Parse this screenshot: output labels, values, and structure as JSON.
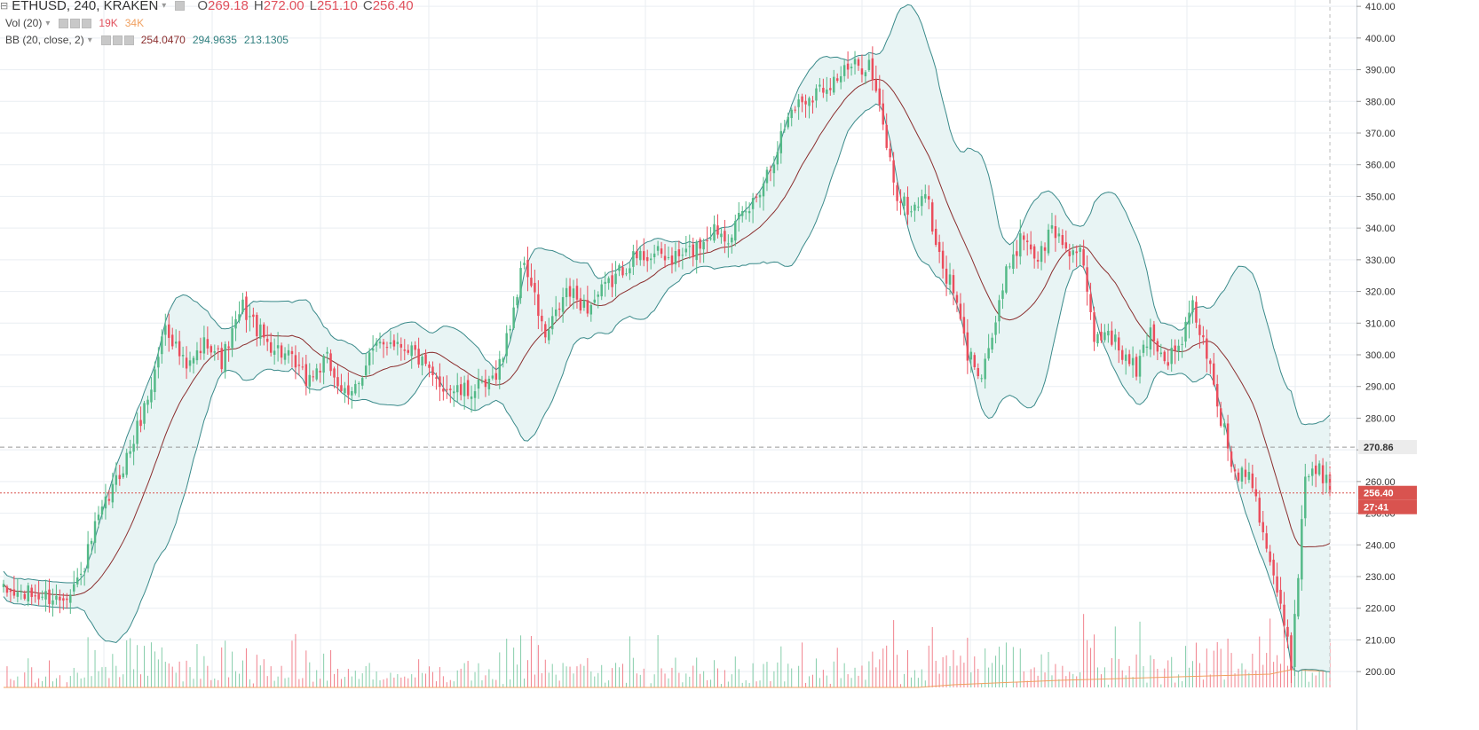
{
  "legend": {
    "symbol": "ETHUSD, 240, KRAKEN",
    "ohlc": [
      {
        "k": "O",
        "v": "269.18"
      },
      {
        "k": "H",
        "v": "272.00"
      },
      {
        "k": "L",
        "v": "251.10"
      },
      {
        "k": "C",
        "v": "256.40"
      }
    ],
    "vol_name": "Vol (20)",
    "vol_values": [
      "19K",
      "34K"
    ],
    "bb_name": "BB (20, close, 2)",
    "bb_values": [
      "254.0470",
      "294.9635",
      "213.1305"
    ]
  },
  "colors": {
    "up": "#53b987",
    "down": "#eb4d5c",
    "basis": "#8b2e2e",
    "band": "#3a8a8a",
    "band_fill": "#e8f4f4",
    "grid": "#e9eef2",
    "vol_ma": "#f0a060",
    "ref_line": "#999999",
    "price_line": "#d9534f",
    "axis_text": "#333333"
  },
  "chart_data": {
    "type": "candlestick",
    "symbol": "ETHUSD",
    "interval": "240",
    "exchange": "KRAKEN",
    "ylim": [
      195,
      412
    ],
    "yticks": [
      200,
      210,
      220,
      230,
      240,
      250,
      260,
      270,
      280,
      290,
      300,
      310,
      320,
      330,
      340,
      350,
      360,
      370,
      380,
      390,
      400,
      410
    ],
    "ytick_labels": [
      "200.00",
      "210.00",
      "220.00",
      "230.00",
      "240.00",
      "250.00",
      "260.00",
      "270.00",
      "280.00",
      "290.00",
      "300.00",
      "310.00",
      "320.00",
      "330.00",
      "340.00",
      "350.00",
      "360.00",
      "370.00",
      "380.00",
      "390.00",
      "400.00",
      "410.00"
    ],
    "hline_ref": {
      "value": 270.86,
      "label": "270.86"
    },
    "hline_last": {
      "value": 256.4,
      "label": "256.40"
    },
    "countdown_label": "27:41",
    "close_anchors": [
      [
        0,
        225
      ],
      [
        10,
        224
      ],
      [
        16,
        223
      ],
      [
        22,
        230
      ],
      [
        26,
        245
      ],
      [
        30,
        255
      ],
      [
        36,
        270
      ],
      [
        42,
        290
      ],
      [
        46,
        310
      ],
      [
        52,
        295
      ],
      [
        58,
        305
      ],
      [
        62,
        298
      ],
      [
        68,
        315
      ],
      [
        74,
        305
      ],
      [
        80,
        300
      ],
      [
        86,
        292
      ],
      [
        92,
        298
      ],
      [
        98,
        285
      ],
      [
        104,
        300
      ],
      [
        110,
        305
      ],
      [
        116,
        302
      ],
      [
        122,
        292
      ],
      [
        130,
        288
      ],
      [
        138,
        290
      ],
      [
        142,
        300
      ],
      [
        148,
        330
      ],
      [
        154,
        305
      ],
      [
        160,
        320
      ],
      [
        166,
        315
      ],
      [
        172,
        322
      ],
      [
        178,
        330
      ],
      [
        184,
        332
      ],
      [
        190,
        330
      ],
      [
        196,
        333
      ],
      [
        202,
        340
      ],
      [
        206,
        338
      ],
      [
        212,
        346
      ],
      [
        218,
        360
      ],
      [
        224,
        378
      ],
      [
        232,
        384
      ],
      [
        240,
        390
      ],
      [
        246,
        392
      ],
      [
        250,
        372
      ],
      [
        254,
        350
      ],
      [
        258,
        345
      ],
      [
        262,
        352
      ],
      [
        266,
        330
      ],
      [
        270,
        320
      ],
      [
        274,
        300
      ],
      [
        278,
        295
      ],
      [
        282,
        310
      ],
      [
        286,
        330
      ],
      [
        290,
        338
      ],
      [
        294,
        330
      ],
      [
        298,
        340
      ],
      [
        302,
        334
      ],
      [
        306,
        332
      ],
      [
        310,
        305
      ],
      [
        314,
        308
      ],
      [
        318,
        300
      ],
      [
        322,
        295
      ],
      [
        326,
        308
      ],
      [
        330,
        298
      ],
      [
        334,
        302
      ],
      [
        338,
        315
      ],
      [
        342,
        300
      ],
      [
        346,
        280
      ],
      [
        350,
        262
      ],
      [
        354,
        265
      ],
      [
        358,
        245
      ],
      [
        362,
        225
      ],
      [
        366,
        203
      ],
      [
        370,
        262
      ],
      [
        374,
        265
      ],
      [
        377,
        256.4
      ]
    ],
    "volume_ma_anchors": [
      [
        0,
        0
      ],
      [
        200,
        0
      ],
      [
        260,
        0
      ],
      [
        270,
        3
      ],
      [
        300,
        8
      ],
      [
        360,
        15
      ],
      [
        366,
        20
      ],
      [
        377,
        18
      ]
    ],
    "bollinger": {
      "period": 20,
      "source": "close",
      "mult": 2
    }
  }
}
